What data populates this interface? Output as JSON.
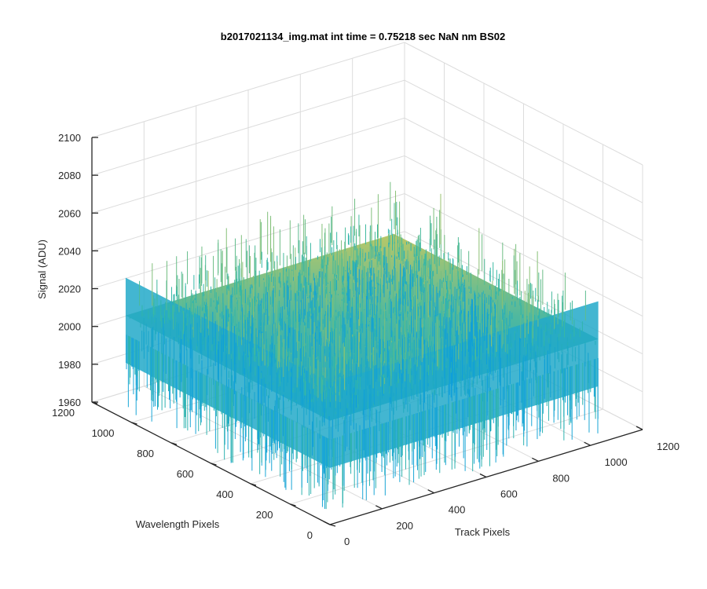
{
  "chart_data": {
    "type": "surface",
    "title": "b2017021134_img.mat int time = 0.75218 sec  NaN nm BS02",
    "xlabel": "Track Pixels",
    "ylabel": "Wavelength Pixels",
    "zlabel": "Signal (ADU)",
    "xlim": [
      0,
      1200
    ],
    "ylim": [
      0,
      1200
    ],
    "zlim": [
      1960,
      2100
    ],
    "xticks": [
      "0",
      "200",
      "400",
      "600",
      "800",
      "1000",
      "1200"
    ],
    "yticks": [
      "0",
      "200",
      "400",
      "600",
      "800",
      "1000",
      "1200"
    ],
    "zticks": [
      "1960",
      "1980",
      "2000",
      "2020",
      "2040",
      "2060",
      "2080",
      "2100"
    ],
    "grid": true,
    "colormap": "parula",
    "surface_level": {
      "typical_range": [
        1995,
        2030
      ],
      "mean_approx": 2015,
      "min_approx": 1965,
      "max_approx": 2085
    },
    "data_extent": {
      "x": [
        0,
        1030
      ],
      "y": [
        0,
        1030
      ]
    }
  },
  "colors": {
    "grid": "#dcdcdc",
    "axis": "#262626",
    "background": "#ffffff",
    "surface_low": "#0d9edb",
    "surface_mid": "#35b8a5",
    "surface_high": "#d8c84a"
  }
}
